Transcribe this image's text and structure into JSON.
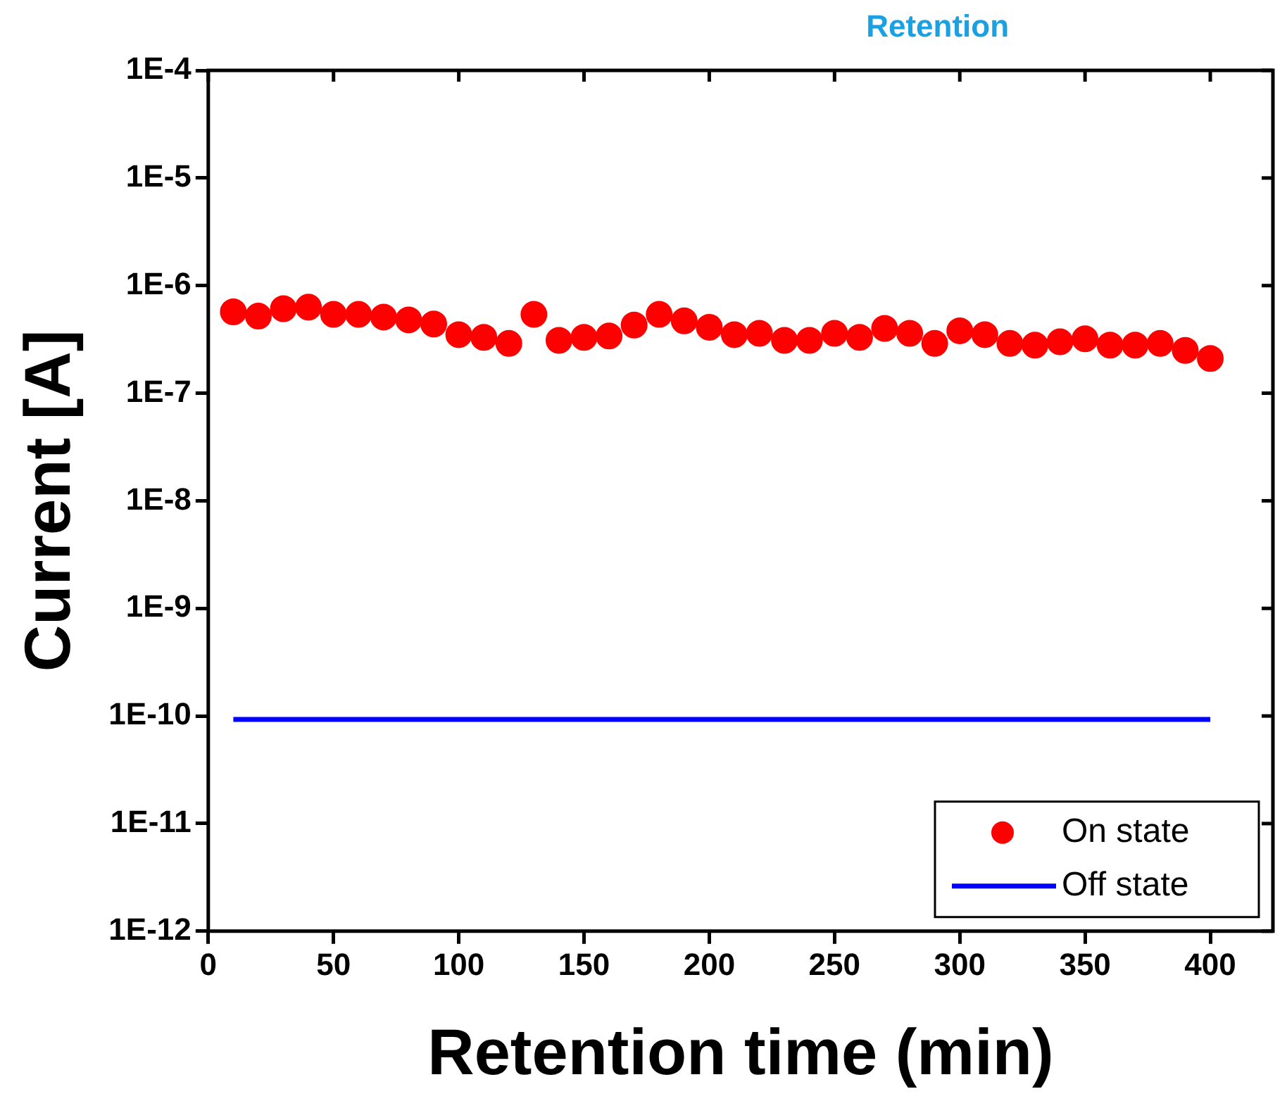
{
  "chart_data": {
    "type": "scatter",
    "title": "Retention",
    "xlabel": "Retention time (min)",
    "ylabel": "Current [A]",
    "x": [
      10,
      20,
      30,
      40,
      50,
      60,
      70,
      80,
      90,
      100,
      110,
      120,
      130,
      140,
      150,
      160,
      170,
      180,
      190,
      200,
      210,
      220,
      230,
      240,
      250,
      260,
      270,
      280,
      290,
      300,
      310,
      320,
      330,
      340,
      350,
      360,
      370,
      380,
      390,
      400
    ],
    "series": [
      {
        "name": "On state",
        "color": "#ff0000",
        "marker": "circle",
        "values": [
          5.7e-07,
          5.2e-07,
          6.1e-07,
          6.3e-07,
          5.4e-07,
          5.4e-07,
          5.1e-07,
          4.8e-07,
          4.4e-07,
          3.5e-07,
          3.3e-07,
          2.9e-07,
          5.4e-07,
          3.1e-07,
          3.3e-07,
          3.4e-07,
          4.3e-07,
          5.4e-07,
          4.7e-07,
          4.1e-07,
          3.5e-07,
          3.6e-07,
          3.1e-07,
          3.1e-07,
          3.6e-07,
          3.3e-07,
          4e-07,
          3.6e-07,
          2.9e-07,
          3.8e-07,
          3.5e-07,
          2.9e-07,
          2.8e-07,
          3e-07,
          3.2e-07,
          2.8e-07,
          2.8e-07,
          2.9e-07,
          2.5e-07,
          2.1e-07
        ]
      },
      {
        "name": "Off state",
        "type": "line",
        "color": "#0000ff",
        "marker": "none",
        "line_style": "solid",
        "x": [
          10,
          400
        ],
        "values": [
          9.3e-11,
          9.3e-11
        ]
      }
    ],
    "log": "y",
    "xlim": [
      0,
      425
    ],
    "xticks": [
      0,
      50,
      100,
      150,
      200,
      250,
      300,
      350,
      400
    ],
    "ylim": [
      1e-12,
      0.0001
    ],
    "yticks": [
      {
        "value": 1e-12,
        "label": "1E-12"
      },
      {
        "value": 1e-11,
        "label": "1E-11"
      },
      {
        "value": 1e-10,
        "label": "1E-10"
      },
      {
        "value": 1e-09,
        "label": "1E-9"
      },
      {
        "value": 1e-08,
        "label": "1E-8"
      },
      {
        "value": 1e-07,
        "label": "1E-7"
      },
      {
        "value": 1e-06,
        "label": "1E-6"
      },
      {
        "value": 1e-05,
        "label": "1E-5"
      },
      {
        "value": 0.0001,
        "label": "1E-4"
      }
    ],
    "grid": false,
    "legend": "bottom right"
  }
}
